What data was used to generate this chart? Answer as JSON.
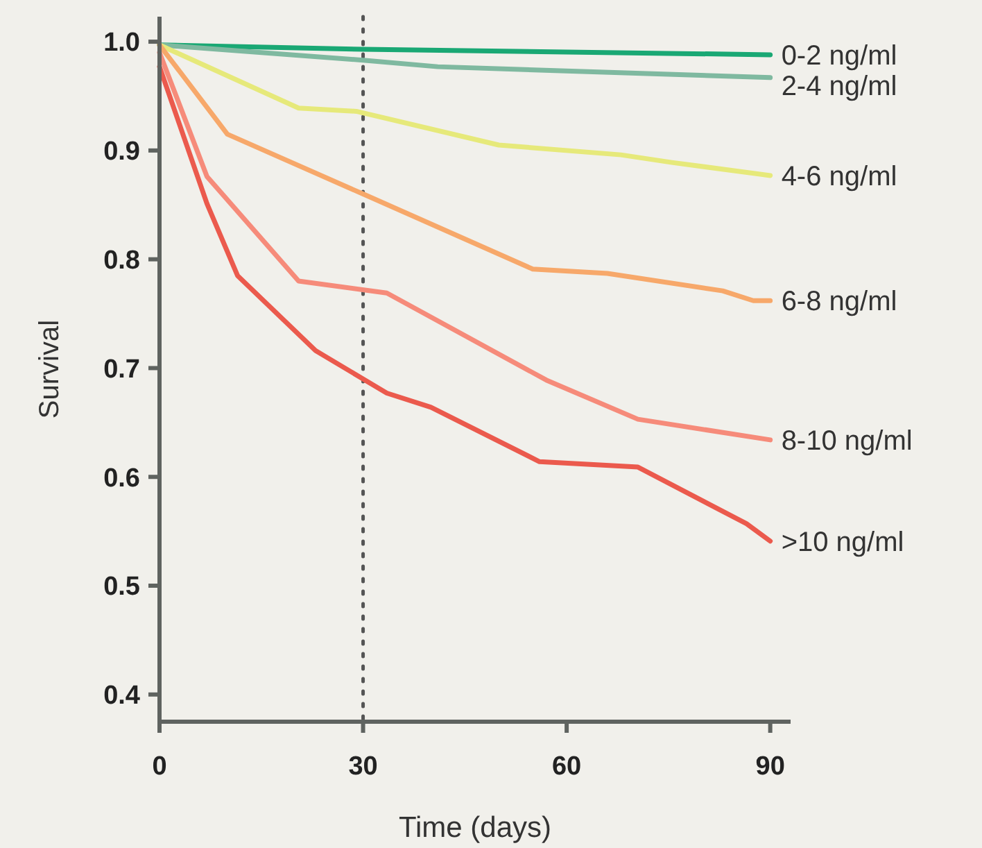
{
  "chart_data": {
    "type": "line",
    "xlabel": "Time (days)",
    "ylabel": "Survival",
    "xlim": [
      0,
      93
    ],
    "ylim": [
      0.375,
      1.023
    ],
    "xticks": [
      0,
      30,
      60,
      90
    ],
    "yticks": [
      0.4,
      0.5,
      0.6,
      0.7,
      0.8,
      0.9,
      {
        "value": 1,
        "label": "1.0"
      }
    ],
    "grid": false,
    "marker": "none",
    "line_style": "solid",
    "ref_lines": [
      {
        "axis": "x",
        "value": 30,
        "line_style": "dotted",
        "color": "#555555"
      }
    ],
    "series": [
      {
        "name": "0-2 ng/ml",
        "color": "#1aa874",
        "x": [
          0,
          30,
          90
        ],
        "values": [
          0.997,
          0.993,
          0.988
        ]
      },
      {
        "name": "2-4 ng/ml",
        "color": "#7fb9a0",
        "x": [
          0,
          30,
          41,
          90
        ],
        "values": [
          0.997,
          0.983,
          0.977,
          0.967
        ]
      },
      {
        "name": "4-6 ng/ml",
        "color": "#e6e97a",
        "x": [
          0,
          20.5,
          29,
          50,
          68,
          75.5,
          90
        ],
        "values": [
          0.997,
          0.939,
          0.936,
          0.905,
          0.896,
          0.889,
          0.877
        ]
      },
      {
        "name": "6-8 ng/ml",
        "color": "#f7a86a",
        "x": [
          0,
          10,
          30,
          55,
          66,
          83,
          87.5,
          90
        ],
        "values": [
          0.997,
          0.915,
          0.86,
          0.791,
          0.787,
          0.771,
          0.762,
          0.762
        ]
      },
      {
        "name": "8-10 ng/ml",
        "color": "#f68b7a",
        "x": [
          0,
          7,
          20.5,
          33.5,
          57,
          70.5,
          90
        ],
        "values": [
          0.99,
          0.876,
          0.78,
          0.769,
          0.689,
          0.653,
          0.634
        ]
      },
      {
        "name": ">10 ng/ml",
        "color": "#eb5a4d",
        "x": [
          0,
          7,
          11.5,
          23,
          33.5,
          40,
          56,
          70.5,
          86.5,
          90
        ],
        "values": [
          0.977,
          0.851,
          0.785,
          0.716,
          0.677,
          0.664,
          0.614,
          0.609,
          0.557,
          0.541
        ]
      }
    ]
  }
}
